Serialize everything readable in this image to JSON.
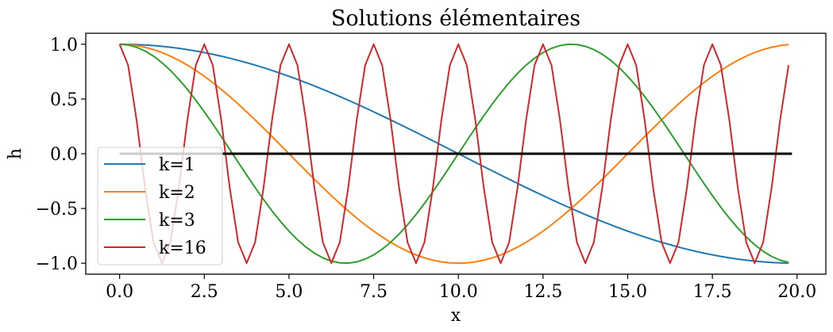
{
  "chart_data": {
    "type": "line",
    "title": "Solutions élémentaires",
    "xlabel": "x",
    "ylabel": "h",
    "xlim": [
      -1.0,
      20.85
    ],
    "ylim": [
      -1.1,
      1.1
    ],
    "xticks": [
      0.0,
      2.5,
      5.0,
      7.5,
      10.0,
      12.5,
      15.0,
      17.5,
      20.0
    ],
    "xtick_labels": [
      "0.0",
      "2.5",
      "5.0",
      "7.5",
      "10.0",
      "12.5",
      "15.0",
      "17.5",
      "20.0"
    ],
    "yticks": [
      1.0,
      0.5,
      0.0,
      -0.5,
      -1.0
    ],
    "ytick_labels": [
      "1.0",
      "0.5",
      "0.0",
      "−0.5",
      "−1.0"
    ],
    "grid": false,
    "legend": {
      "position": "lower-left"
    },
    "x": {
      "start": 0.0,
      "stop": 19.85,
      "step": 0.25
    },
    "series": [
      {
        "name": "k=1",
        "color": "#1f77b4",
        "expr": "cos(pi*k*x/20)",
        "k": 1
      },
      {
        "name": "k=2",
        "color": "#ff7f0e",
        "expr": "cos(pi*k*x/20)",
        "k": 2
      },
      {
        "name": "k=3",
        "color": "#2ca02c",
        "expr": "cos(pi*k*x/20)",
        "k": 3
      },
      {
        "name": "k=16",
        "color": "#d62728",
        "expr": "cos(pi*k*x/20)",
        "k": 16
      }
    ],
    "baseline": {
      "y": 0.0,
      "color": "#000000"
    }
  }
}
